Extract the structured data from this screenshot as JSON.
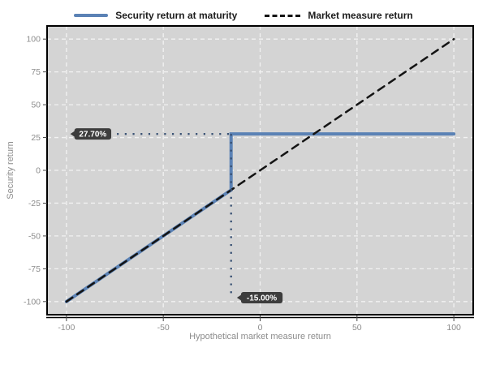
{
  "legend": {
    "items": [
      {
        "label": "Security return at maturity",
        "color": "#5b82b5",
        "style": "solid"
      },
      {
        "label": "Market measure return",
        "color": "#141414",
        "style": "dashed"
      }
    ]
  },
  "chart_data": {
    "type": "line",
    "title": "",
    "xlabel": "Hypothetical market measure return",
    "ylabel": "Security return",
    "xlim": [
      -110,
      110
    ],
    "ylim": [
      -110,
      110
    ],
    "xticks": [
      -100,
      -50,
      0,
      50,
      100
    ],
    "yticks": [
      -100,
      -75,
      -50,
      -25,
      0,
      25,
      50,
      75,
      100
    ],
    "grid": true,
    "legend_position": "top",
    "plot_bg": "#d4d4d4",
    "grid_color": "#f2f2f2",
    "border_color": "#000000",
    "tick_label_color": "#8c8c8c",
    "dotted_color": "#3b5375",
    "badge_bg": "#3d3d3d",
    "badge_text_color": "#ffffff",
    "series": [
      {
        "name": "Security return at maturity",
        "color": "#5b82b5",
        "width": 4,
        "dash": null,
        "points": [
          [
            -100,
            -100
          ],
          [
            -15,
            -15
          ],
          [
            -15,
            27.7
          ],
          [
            100,
            27.7
          ]
        ]
      },
      {
        "name": "Market measure return",
        "color": "#141414",
        "width": 2.5,
        "dash": "9 7",
        "points": [
          [
            -100,
            -100
          ],
          [
            100,
            100
          ]
        ]
      }
    ],
    "annotations": [
      {
        "id": "security-cap-callout",
        "label": "27.70%",
        "value": 27.7,
        "badge_anchor": [
          -98,
          27.7
        ],
        "dotted_from": [
          -78,
          27.7
        ],
        "dotted_to": [
          -15,
          27.7
        ]
      },
      {
        "id": "buffer-threshold-callout",
        "label": "-15.00%",
        "value": -15,
        "badge_anchor": [
          -12,
          -97
        ],
        "dotted_from": [
          -15,
          27.7
        ],
        "dotted_to": [
          -15,
          -97
        ]
      }
    ]
  }
}
